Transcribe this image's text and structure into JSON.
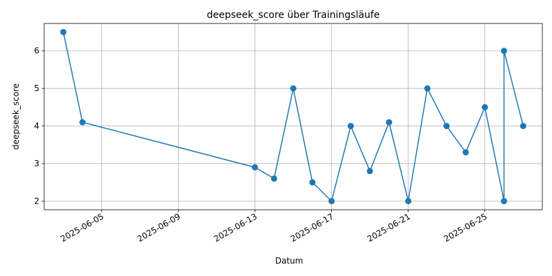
{
  "chart_data": {
    "type": "line",
    "title": "deepseek_score über Trainingsläufe",
    "xlabel": "Datum",
    "ylabel": "deepseek_score",
    "x_type": "date",
    "xlim": [
      "2025-06-02",
      "2025-06-28"
    ],
    "ylim": [
      1.77,
      6.73
    ],
    "x_ticks": [
      "2025-06-05",
      "2025-06-09",
      "2025-06-13",
      "2025-06-17",
      "2025-06-21",
      "2025-06-25"
    ],
    "y_ticks": [
      2,
      3,
      4,
      5,
      6
    ],
    "grid": true,
    "line_color": "#1f77b4",
    "marker": "circle",
    "series": [
      {
        "x": [
          "2025-06-03",
          "2025-06-04",
          "2025-06-13",
          "2025-06-14",
          "2025-06-15",
          "2025-06-16",
          "2025-06-17",
          "2025-06-18",
          "2025-06-19",
          "2025-06-20",
          "2025-06-21",
          "2025-06-22",
          "2025-06-23",
          "2025-06-24",
          "2025-06-25",
          "2025-06-26",
          "2025-06-26",
          "2025-06-27"
        ],
        "values": [
          6.5,
          4.1,
          2.9,
          2.6,
          5.0,
          2.5,
          2.0,
          4.0,
          2.8,
          4.1,
          2.0,
          5.0,
          4.0,
          3.3,
          4.5,
          2.0,
          6.0,
          4.0
        ]
      }
    ]
  }
}
